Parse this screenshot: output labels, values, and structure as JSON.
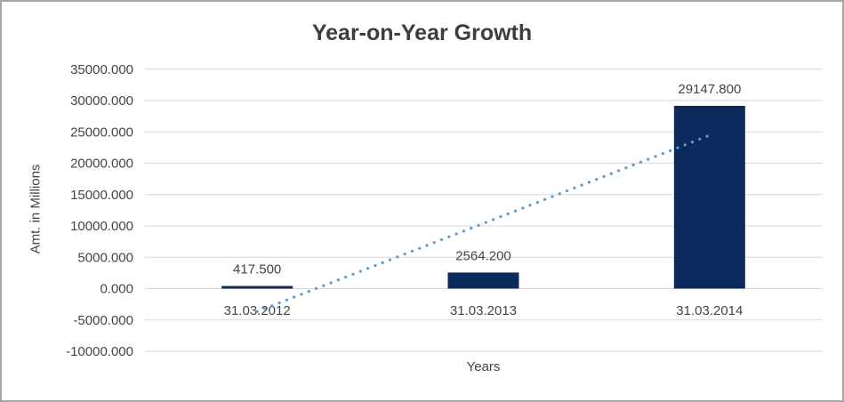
{
  "chart_data": {
    "type": "bar",
    "title": "Year-on-Year Growth",
    "xlabel": "Years",
    "ylabel": "Amt. in Millions",
    "categories": [
      "31.03.2012",
      "31.03.2013",
      "31.03.2014"
    ],
    "series": [
      {
        "values": [
          417.5,
          2564.2,
          29147.8
        ],
        "data_labels": [
          "417.500",
          "2564.200",
          "29147.800"
        ],
        "color": "#0d2a5c"
      }
    ],
    "ylim": [
      -10000,
      35000
    ],
    "ytick_step": 5000,
    "yticks": [
      {
        "v": 35000,
        "label": "35000.000"
      },
      {
        "v": 30000,
        "label": "30000.000"
      },
      {
        "v": 25000,
        "label": "25000.000"
      },
      {
        "v": 20000,
        "label": "20000.000"
      },
      {
        "v": 15000,
        "label": "15000.000"
      },
      {
        "v": 10000,
        "label": "10000.000"
      },
      {
        "v": 5000,
        "label": "5000.000"
      },
      {
        "v": 0,
        "label": "0.000"
      },
      {
        "v": -5000,
        "label": "-5000.000"
      },
      {
        "v": -10000,
        "label": "-10000.000"
      }
    ],
    "grid": true,
    "legend": "none",
    "trendline": {
      "type": "linear",
      "style": "dotted",
      "color": "#5b9bd5",
      "start_value": -3655.3,
      "end_value": 24440.3
    },
    "colors": {
      "bar": "#0d2a5c",
      "trendline": "#5b9bd5",
      "gridline": "#d9d9d9",
      "text": "#444444",
      "title_text": "#3d3d3d",
      "border": "#a6a6a6",
      "background": "#ffffff"
    }
  }
}
